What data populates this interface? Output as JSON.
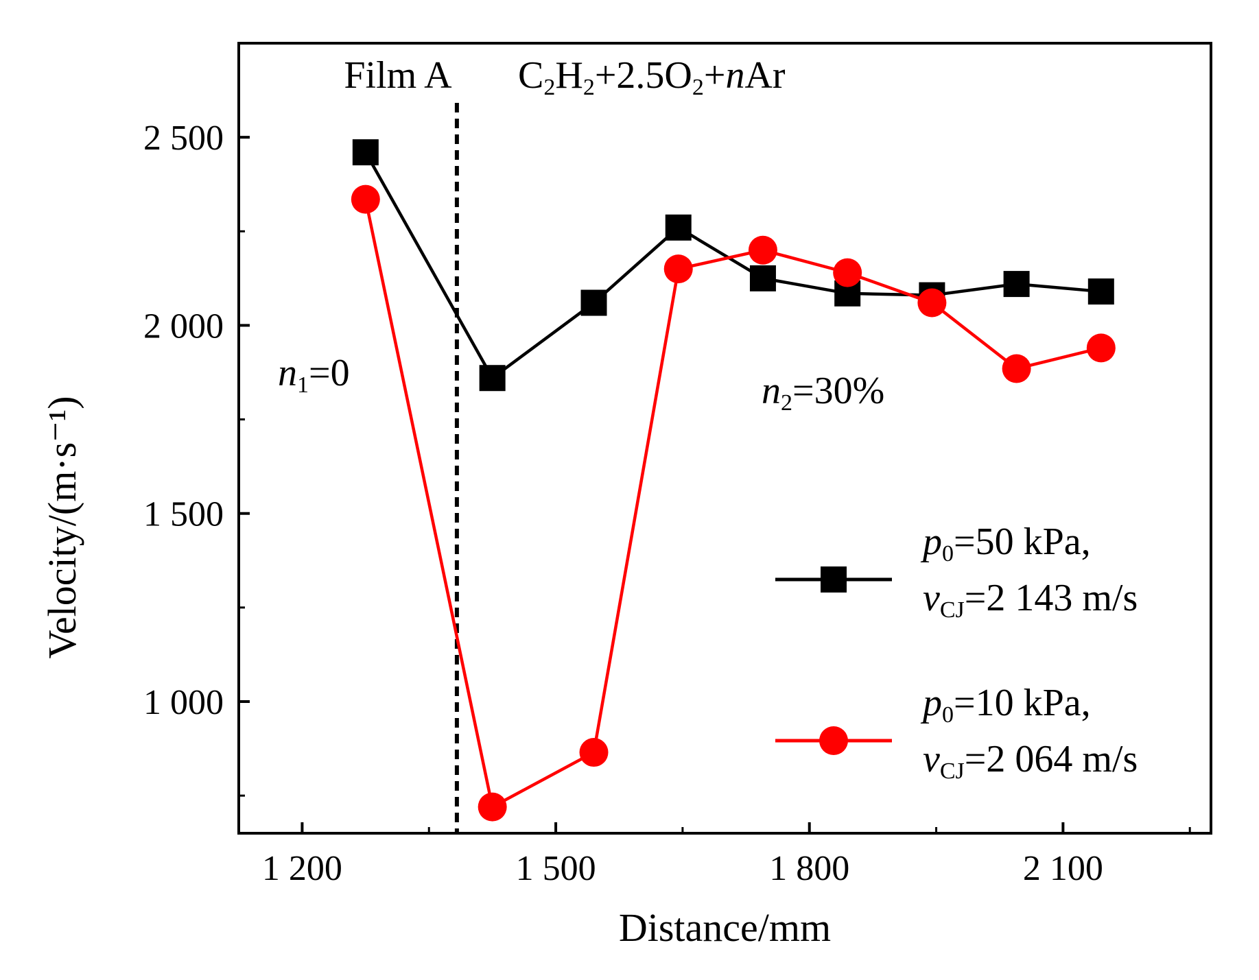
{
  "chart_data": {
    "type": "line",
    "title": "",
    "xlabel": "Distance/mm",
    "ylabel": "Velocity/(m·s⁻¹)",
    "xlim": [
      1125,
      2275
    ],
    "ylim": [
      650,
      2750
    ],
    "x_ticks": [
      1200,
      1500,
      1800,
      2100
    ],
    "x_tick_labels": [
      "1 200",
      "1 500",
      "1 800",
      "2 100"
    ],
    "x_minor_ticks": [
      1350,
      1650,
      1950,
      2250
    ],
    "y_ticks": [
      1000,
      1500,
      2000,
      2500
    ],
    "y_tick_labels": [
      "1 000",
      "1 500",
      "2 000",
      "2 500"
    ],
    "y_minor_ticks": [
      750,
      1250,
      1750,
      2250
    ],
    "grid": false,
    "legend_position": "bottom-right",
    "series": [
      {
        "name_parts": {
          "var": "p",
          "var_sub": "0",
          "rest": "=50 kPa,",
          "line2_var": "v",
          "line2_sub": "CJ",
          "line2_rest": "=2 143 m/s"
        },
        "color": "#000000",
        "marker": "square",
        "x": [
          1275,
          1425,
          1545,
          1645,
          1745,
          1845,
          1945,
          2045,
          2145
        ],
        "y": [
          2460,
          1860,
          2060,
          2260,
          2125,
          2085,
          2080,
          2110,
          2090
        ]
      },
      {
        "name_parts": {
          "var": "p",
          "var_sub": "0",
          "rest": "=10 kPa,",
          "line2_var": "v",
          "line2_sub": "CJ",
          "line2_rest": "=2 064 m/s"
        },
        "color": "#ff0000",
        "marker": "circle",
        "x": [
          1275,
          1425,
          1545,
          1645,
          1745,
          1845,
          1945,
          2045,
          2145
        ],
        "y": [
          2335,
          720,
          865,
          2150,
          2200,
          2140,
          2060,
          1885,
          1940
        ]
      }
    ],
    "annotations": {
      "film_line_x": 1383,
      "film_label": "Film A",
      "mixture": {
        "c": "C",
        "c_sub": "2",
        "h": "H",
        "h_sub": "2",
        "o_part": "+2.5O",
        "o_sub": "2",
        "plus": "+",
        "n_var": "n",
        "ar": "Ar"
      },
      "n1": {
        "var": "n",
        "sub": "1",
        "rest": "=0"
      },
      "n2": {
        "var": "n",
        "sub": "2",
        "rest": "=30%"
      }
    }
  }
}
